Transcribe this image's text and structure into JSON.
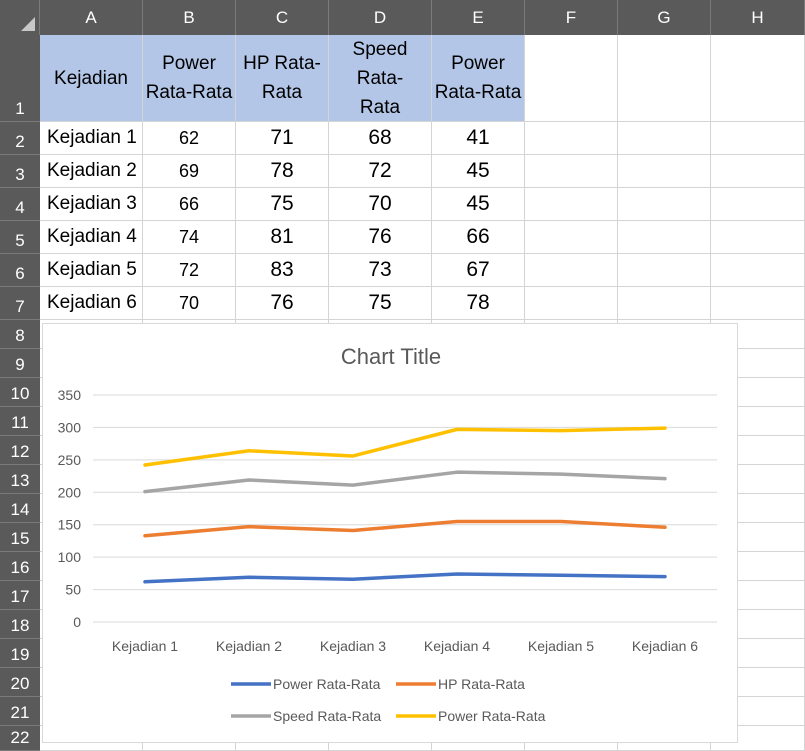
{
  "columns": [
    "A",
    "B",
    "C",
    "D",
    "E",
    "F",
    "G",
    "H"
  ],
  "rows": [
    "1",
    "2",
    "3",
    "4",
    "5",
    "6",
    "7",
    "8",
    "9",
    "10",
    "11",
    "12",
    "13",
    "14",
    "15",
    "16",
    "17",
    "18",
    "19",
    "20",
    "21",
    "22"
  ],
  "table": {
    "headers": [
      [
        "Kejadian"
      ],
      [
        "Power",
        "Rata-Rata"
      ],
      [
        "HP Rata-",
        "Rata"
      ],
      [
        "Speed Rata-",
        "Rata"
      ],
      [
        "Power",
        "Rata-Rata"
      ]
    ],
    "rows": [
      [
        "Kejadian 1",
        "62",
        "71",
        "68",
        "41"
      ],
      [
        "Kejadian 2",
        "69",
        "78",
        "72",
        "45"
      ],
      [
        "Kejadian 3",
        "66",
        "75",
        "70",
        "45"
      ],
      [
        "Kejadian 4",
        "74",
        "81",
        "76",
        "66"
      ],
      [
        "Kejadian 5",
        "72",
        "83",
        "73",
        "67"
      ],
      [
        "Kejadian 6",
        "70",
        "76",
        "75",
        "78"
      ]
    ]
  },
  "chart_data": {
    "type": "line",
    "stacked": true,
    "title": "Chart Title",
    "categories": [
      "Kejadian 1",
      "Kejadian 2",
      "Kejadian 3",
      "Kejadian 4",
      "Kejadian 5",
      "Kejadian 6"
    ],
    "ylim": [
      0,
      350
    ],
    "yticks": [
      "0",
      "50",
      "100",
      "150",
      "200",
      "250",
      "300",
      "350"
    ],
    "grid": true,
    "legend": "bottom",
    "series": [
      {
        "name": "Power Rata-Rata",
        "color": "#4472c4",
        "values": [
          62,
          69,
          66,
          74,
          72,
          70
        ]
      },
      {
        "name": "HP Rata-Rata",
        "color": "#ed7d31",
        "values": [
          71,
          78,
          75,
          81,
          83,
          76
        ]
      },
      {
        "name": "Speed Rata-Rata",
        "color": "#a5a5a5",
        "values": [
          68,
          72,
          70,
          76,
          73,
          75
        ]
      },
      {
        "name": "Power Rata-Rata",
        "color": "#ffc000",
        "values": [
          41,
          45,
          45,
          66,
          67,
          78
        ]
      }
    ]
  }
}
